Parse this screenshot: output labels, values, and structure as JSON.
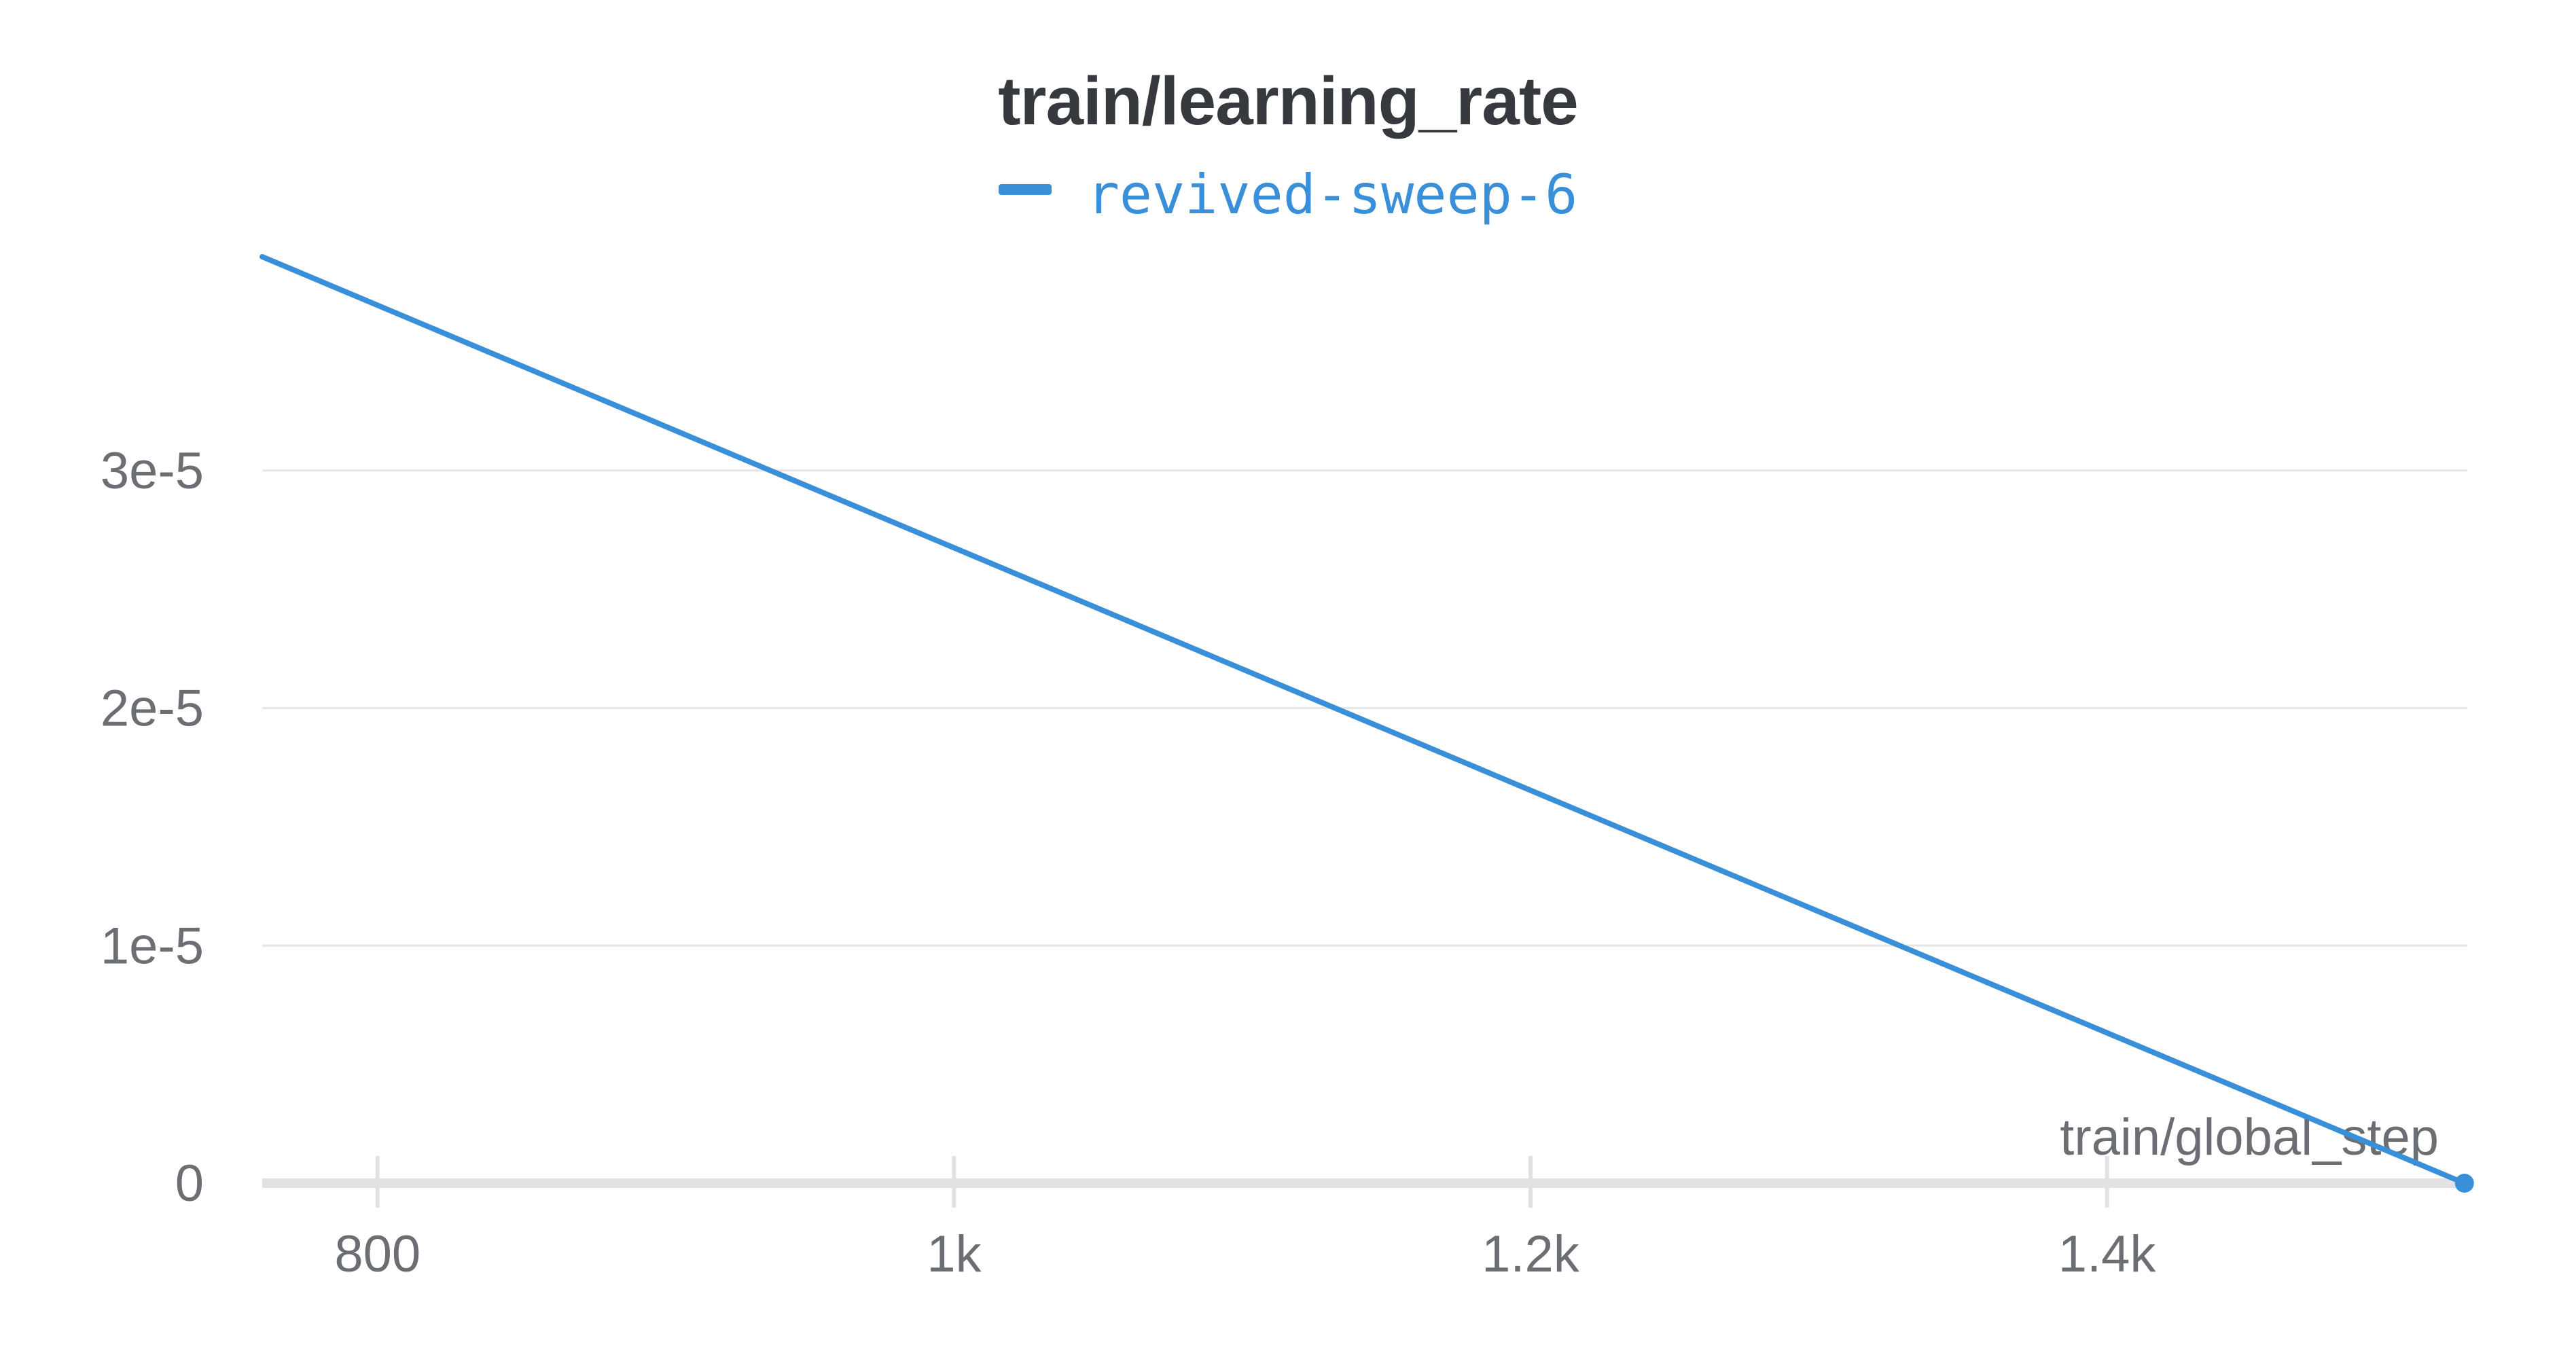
{
  "chart_data": {
    "type": "line",
    "title": "train/learning_rate",
    "xlabel": "train/global_step",
    "ylabel": "",
    "xlim": [
      760,
      1525
    ],
    "ylim": [
      0,
      3.9e-05
    ],
    "grid": true,
    "legend_position": "top-center",
    "x_ticks": [
      {
        "value": 800,
        "label": "800"
      },
      {
        "value": 1000,
        "label": "1k"
      },
      {
        "value": 1200,
        "label": "1.2k"
      },
      {
        "value": 1400,
        "label": "1.4k"
      }
    ],
    "y_ticks": [
      {
        "value": 0,
        "label": "0"
      },
      {
        "value": 1e-05,
        "label": "1e-5"
      },
      {
        "value": 2e-05,
        "label": "2e-5"
      },
      {
        "value": 3e-05,
        "label": "3e-5"
      }
    ],
    "series": [
      {
        "name": "revived-sweep-6",
        "color": "#3a8fd9",
        "x": [
          760,
          1524
        ],
        "y": [
          3.9e-05,
          0
        ]
      }
    ]
  }
}
